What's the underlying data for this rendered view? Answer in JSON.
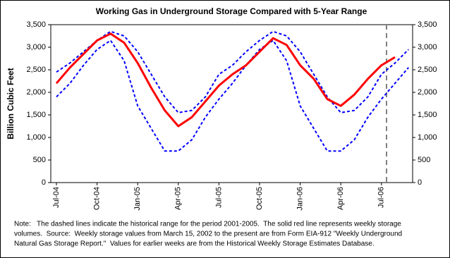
{
  "chart_data": {
    "type": "line",
    "title": "Working Gas in Underground Storage Compared with 5-Year Range",
    "y_label": "Billion Cubic Feet",
    "categories": [
      "Jul-04",
      null,
      null,
      "Oct-04",
      null,
      null,
      "Jan-05",
      null,
      null,
      "Apr-05",
      null,
      null,
      "Jul-05",
      null,
      null,
      "Oct-05",
      null,
      null,
      "Jan-06",
      null,
      null,
      "Apr-06",
      null,
      null,
      "Jul-06",
      null,
      null
    ],
    "series": [
      {
        "color": "#0000ff",
        "dashed": true,
        "values": [
          2450,
          2650,
          2900,
          3150,
          3350,
          3250,
          2900,
          2400,
          1900,
          1550,
          1600,
          1900,
          2400,
          2600,
          2900,
          3150,
          3350,
          3250,
          2900,
          2400,
          1900,
          1550,
          1600,
          1900,
          2400,
          2650,
          2950
        ]
      },
      {
        "color": "#0000ff",
        "dashed": true,
        "values": [
          1900,
          2200,
          2600,
          2950,
          3150,
          2700,
          1700,
          1200,
          700,
          700,
          950,
          1450,
          1850,
          2200,
          2600,
          2950,
          3150,
          2700,
          1700,
          1200,
          700,
          700,
          950,
          1450,
          1850,
          2200,
          2550
        ]
      },
      {
        "color": "#ff0000",
        "dashed": false,
        "values": [
          2200,
          2550,
          2850,
          3150,
          3300,
          3100,
          2650,
          2100,
          1600,
          1250,
          1450,
          1800,
          2150,
          2400,
          2600,
          2900,
          3200,
          3050,
          2600,
          2300,
          1850,
          1700,
          1950,
          2300,
          2600,
          2780,
          null
        ]
      }
    ],
    "ylim": [
      0,
      3500
    ],
    "yticks": [
      0,
      500,
      {
        "value": 1000,
        "label": "1,000"
      },
      {
        "value": 1500,
        "label": "1,500"
      },
      {
        "value": 2000,
        "label": "2,000"
      },
      {
        "value": 2500,
        "label": "2,500"
      },
      {
        "value": 3000,
        "label": "3,000"
      },
      {
        "value": 3500,
        "label": "3,500"
      }
    ],
    "y2lim": [
      0,
      3500
    ],
    "y2ticks": [
      0,
      500,
      {
        "value": 1000,
        "label": "1,000"
      },
      {
        "value": 1500,
        "label": "1,500"
      },
      {
        "value": 2000,
        "label": "2,000"
      },
      {
        "value": 2500,
        "label": "2,500"
      },
      {
        "value": 3000,
        "label": "3,000"
      },
      {
        "value": 3500,
        "label": "3,500"
      }
    ],
    "grid": false,
    "note_lines": [
      "Note:   The dashed lines indicate the historical range for the period 2001-2005.  The solid red line represents weekly storage",
      "volumes.  Source:  Weekly storage values from March 15, 2002 to the present are from Form EIA-912 \"Weekly Underground",
      "Natural Gas Storage Report.\"  Values for earlier weeks are from the Historical Weekly Storage Estimates Database."
    ]
  }
}
